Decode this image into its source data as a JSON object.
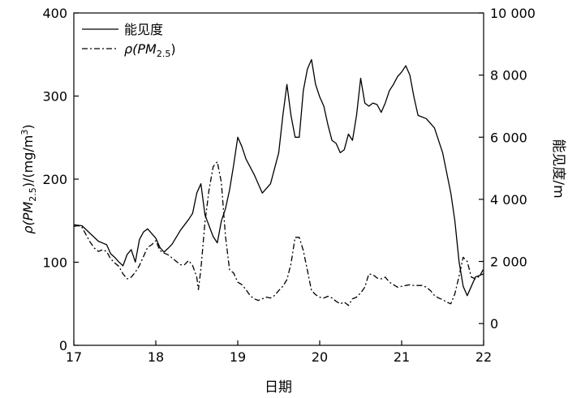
{
  "chart_data": {
    "type": "line",
    "title": "",
    "xlabel": "日期",
    "ylabel_left": {
      "main": "ρ(PM",
      "sub": "2.5",
      "tail": ")/(mg/m",
      "sup": "3",
      "end": ")"
    },
    "ylabel_right": "能见度/m",
    "xlim": [
      17,
      22
    ],
    "ylim_left": [
      0,
      400
    ],
    "ylim_right": [
      -700,
      10000
    ],
    "x_ticks": [
      17,
      18,
      19,
      20,
      21,
      22
    ],
    "x_tick_labels": [
      "17",
      "18",
      "19",
      "20",
      "21",
      "22"
    ],
    "y_left_ticks": [
      0,
      100,
      200,
      300,
      400
    ],
    "y_left_tick_labels": [
      "0",
      "100",
      "200",
      "300",
      "400"
    ],
    "y_right_ticks": [
      0,
      2000,
      4000,
      6000,
      8000,
      10000
    ],
    "y_right_tick_labels": [
      "0",
      "2 000",
      "4 000",
      "6 000",
      "8 000",
      "10 000"
    ],
    "grid": false,
    "legend": {
      "position": "top-left",
      "entries": [
        {
          "label": "能见度",
          "style": "solid"
        },
        {
          "main": "ρ(PM",
          "sub": "2.5",
          "end": ")",
          "style": "dashdot"
        }
      ]
    },
    "series": [
      {
        "name": "能见度",
        "axis": "right",
        "style": "solid",
        "color": "#000000",
        "points": [
          [
            17.0,
            3180
          ],
          [
            17.1,
            3150
          ],
          [
            17.2,
            2900
          ],
          [
            17.3,
            2650
          ],
          [
            17.4,
            2540
          ],
          [
            17.45,
            2250
          ],
          [
            17.5,
            2130
          ],
          [
            17.55,
            1980
          ],
          [
            17.6,
            1860
          ],
          [
            17.65,
            2220
          ],
          [
            17.7,
            2380
          ],
          [
            17.75,
            1980
          ],
          [
            17.8,
            2700
          ],
          [
            17.85,
            2950
          ],
          [
            17.9,
            3050
          ],
          [
            18.0,
            2750
          ],
          [
            18.05,
            2450
          ],
          [
            18.1,
            2300
          ],
          [
            18.15,
            2420
          ],
          [
            18.2,
            2560
          ],
          [
            18.3,
            3000
          ],
          [
            18.4,
            3350
          ],
          [
            18.45,
            3550
          ],
          [
            18.5,
            4200
          ],
          [
            18.55,
            4500
          ],
          [
            18.6,
            3500
          ],
          [
            18.7,
            2800
          ],
          [
            18.75,
            2600
          ],
          [
            18.8,
            3300
          ],
          [
            18.85,
            3700
          ],
          [
            18.9,
            4300
          ],
          [
            18.95,
            5100
          ],
          [
            19.0,
            6000
          ],
          [
            19.05,
            5700
          ],
          [
            19.1,
            5300
          ],
          [
            19.2,
            4800
          ],
          [
            19.3,
            4200
          ],
          [
            19.4,
            4500
          ],
          [
            19.5,
            5500
          ],
          [
            19.55,
            6700
          ],
          [
            19.6,
            7700
          ],
          [
            19.65,
            6700
          ],
          [
            19.7,
            6000
          ],
          [
            19.75,
            6000
          ],
          [
            19.8,
            7500
          ],
          [
            19.85,
            8200
          ],
          [
            19.9,
            8500
          ],
          [
            19.95,
            7700
          ],
          [
            20.0,
            7300
          ],
          [
            20.05,
            7000
          ],
          [
            20.1,
            6400
          ],
          [
            20.15,
            5900
          ],
          [
            20.2,
            5800
          ],
          [
            20.25,
            5500
          ],
          [
            20.3,
            5600
          ],
          [
            20.35,
            6100
          ],
          [
            20.4,
            5900
          ],
          [
            20.45,
            6700
          ],
          [
            20.5,
            7900
          ],
          [
            20.55,
            7100
          ],
          [
            20.6,
            7000
          ],
          [
            20.65,
            7100
          ],
          [
            20.7,
            7050
          ],
          [
            20.75,
            6800
          ],
          [
            20.8,
            7100
          ],
          [
            20.85,
            7500
          ],
          [
            20.9,
            7700
          ],
          [
            20.95,
            7950
          ],
          [
            21.0,
            8100
          ],
          [
            21.05,
            8300
          ],
          [
            21.1,
            8000
          ],
          [
            21.15,
            7300
          ],
          [
            21.2,
            6700
          ],
          [
            21.3,
            6600
          ],
          [
            21.4,
            6300
          ],
          [
            21.5,
            5500
          ],
          [
            21.6,
            4200
          ],
          [
            21.65,
            3300
          ],
          [
            21.7,
            2000
          ],
          [
            21.75,
            1200
          ],
          [
            21.8,
            900
          ],
          [
            21.85,
            1200
          ],
          [
            21.9,
            1500
          ],
          [
            22.0,
            1600
          ]
        ]
      },
      {
        "name": "ρ(PM2.5)",
        "axis": "left",
        "style": "dashdot",
        "color": "#000000",
        "points": [
          [
            17.0,
            143
          ],
          [
            17.05,
            144
          ],
          [
            17.1,
            142
          ],
          [
            17.15,
            133
          ],
          [
            17.2,
            124
          ],
          [
            17.25,
            117
          ],
          [
            17.3,
            113
          ],
          [
            17.35,
            115
          ],
          [
            17.4,
            113
          ],
          [
            17.45,
            104
          ],
          [
            17.5,
            99
          ],
          [
            17.55,
            95
          ],
          [
            17.6,
            86
          ],
          [
            17.65,
            80
          ],
          [
            17.7,
            82
          ],
          [
            17.75,
            88
          ],
          [
            17.8,
            96
          ],
          [
            17.85,
            107
          ],
          [
            17.9,
            118
          ],
          [
            17.95,
            121
          ],
          [
            18.0,
            126
          ],
          [
            18.05,
            114
          ],
          [
            18.1,
            111
          ],
          [
            18.15,
            109
          ],
          [
            18.2,
            105
          ],
          [
            18.25,
            101
          ],
          [
            18.3,
            97
          ],
          [
            18.35,
            97
          ],
          [
            18.4,
            102
          ],
          [
            18.45,
            96
          ],
          [
            18.5,
            82
          ],
          [
            18.52,
            67
          ],
          [
            18.55,
            92
          ],
          [
            18.6,
            148
          ],
          [
            18.65,
            187
          ],
          [
            18.7,
            215
          ],
          [
            18.75,
            221
          ],
          [
            18.8,
            196
          ],
          [
            18.85,
            131
          ],
          [
            18.9,
            91
          ],
          [
            18.95,
            87
          ],
          [
            19.0,
            76
          ],
          [
            19.05,
            73
          ],
          [
            19.1,
            67
          ],
          [
            19.15,
            60
          ],
          [
            19.2,
            56
          ],
          [
            19.25,
            54
          ],
          [
            19.3,
            56
          ],
          [
            19.35,
            58
          ],
          [
            19.4,
            57
          ],
          [
            19.45,
            60
          ],
          [
            19.5,
            66
          ],
          [
            19.55,
            71
          ],
          [
            19.6,
            79
          ],
          [
            19.65,
            98
          ],
          [
            19.7,
            130
          ],
          [
            19.75,
            130
          ],
          [
            19.8,
            114
          ],
          [
            19.85,
            90
          ],
          [
            19.9,
            66
          ],
          [
            19.95,
            61
          ],
          [
            20.0,
            58
          ],
          [
            20.05,
            57
          ],
          [
            20.1,
            59
          ],
          [
            20.15,
            57
          ],
          [
            20.2,
            53
          ],
          [
            20.25,
            50
          ],
          [
            20.3,
            52
          ],
          [
            20.35,
            48
          ],
          [
            20.4,
            56
          ],
          [
            20.45,
            58
          ],
          [
            20.5,
            63
          ],
          [
            20.55,
            70
          ],
          [
            20.6,
            86
          ],
          [
            20.65,
            85
          ],
          [
            20.7,
            81
          ],
          [
            20.75,
            80
          ],
          [
            20.8,
            82
          ],
          [
            20.85,
            76
          ],
          [
            20.9,
            73
          ],
          [
            20.95,
            70
          ],
          [
            21.0,
            71
          ],
          [
            21.05,
            72
          ],
          [
            21.1,
            73
          ],
          [
            21.15,
            72
          ],
          [
            21.2,
            72
          ],
          [
            21.25,
            72
          ],
          [
            21.3,
            70
          ],
          [
            21.35,
            66
          ],
          [
            21.4,
            60
          ],
          [
            21.45,
            57
          ],
          [
            21.5,
            55
          ],
          [
            21.55,
            52
          ],
          [
            21.6,
            50
          ],
          [
            21.65,
            62
          ],
          [
            21.7,
            83
          ],
          [
            21.75,
            106
          ],
          [
            21.8,
            101
          ],
          [
            21.85,
            82
          ],
          [
            21.9,
            80
          ],
          [
            21.95,
            83
          ],
          [
            22.0,
            92
          ]
        ]
      }
    ]
  }
}
